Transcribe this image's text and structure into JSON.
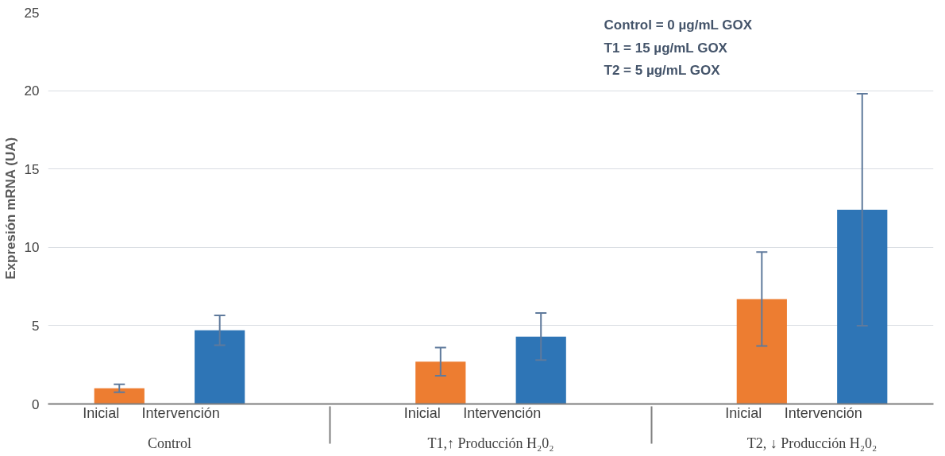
{
  "chart_data": {
    "type": "bar",
    "ylabel": "Expresión mRNA (UA)",
    "categories": [
      "Control",
      "T1,↑ Producción H₂0₂",
      "T2, ↓ Producción H₂0₂"
    ],
    "series": [
      {
        "name": "Inicial",
        "color": "#ed7d31",
        "values": [
          1.0,
          2.7,
          6.7
        ],
        "errors": [
          0.25,
          0.9,
          3.0
        ]
      },
      {
        "name": "Intervención",
        "color": "#2e75b6",
        "values": [
          4.7,
          4.3,
          12.4
        ],
        "errors": [
          0.95,
          1.5,
          7.4
        ]
      }
    ],
    "ylim": [
      0,
      25
    ],
    "yticks": [
      0,
      5,
      10,
      15,
      20,
      25
    ],
    "grid": "y",
    "legend": false,
    "annotations": [
      "Control = 0 µg/mL GOX",
      "T1 = 15 µg/mL GOX",
      "T2 = 5 µg/mL GOX"
    ]
  }
}
